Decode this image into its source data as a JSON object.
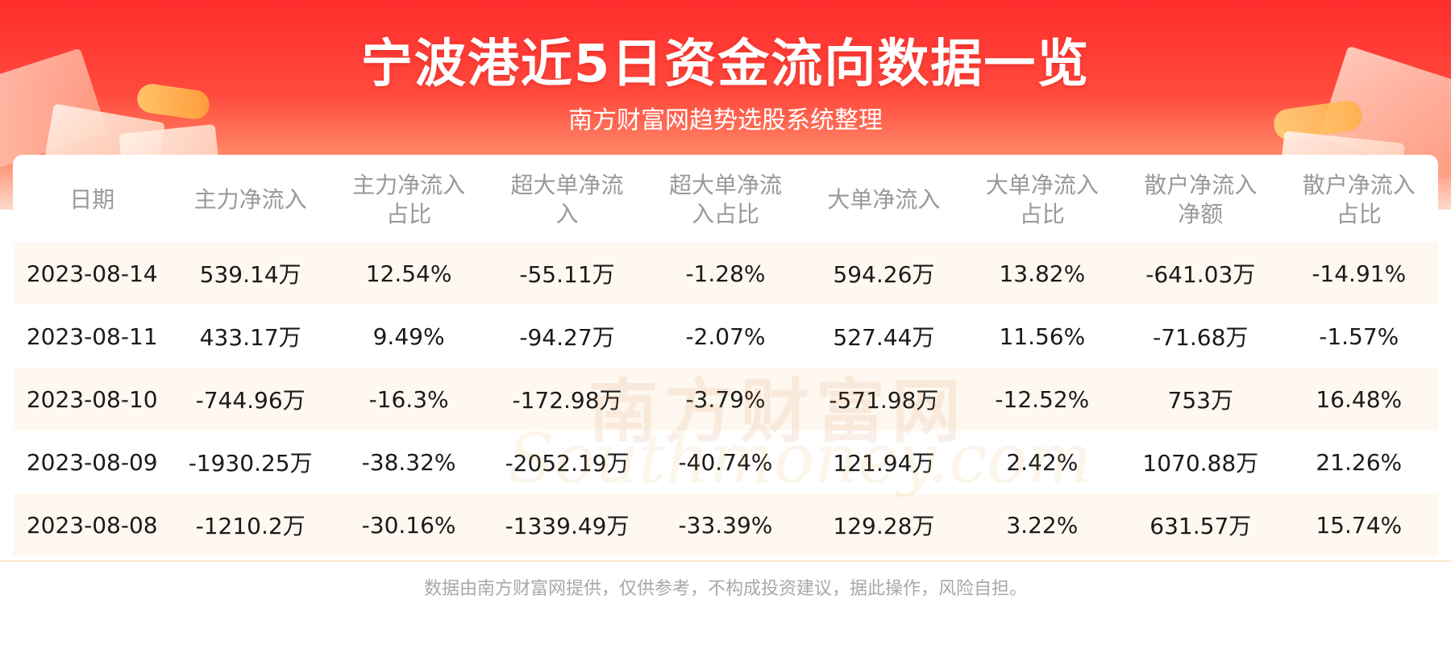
{
  "header": {
    "title": "宁波港近5日资金流向数据一览",
    "subtitle": "南方财富网趋势选股系统整理"
  },
  "watermark": {
    "cn": "南方财富网",
    "en": "Southmoney.com"
  },
  "footer": {
    "disclaimer": "数据由南方财富网提供，仅供参考，不构成投资建议，据此操作，风险自担。"
  },
  "colors": {
    "banner_red": "#ff2d2d",
    "row_stripe": "#fff8f0",
    "header_text": "#999999",
    "cell_text": "#1a1a1a"
  },
  "chart_data": {
    "type": "table",
    "columns": [
      "日期",
      "主力净流入",
      "主力净流入占比",
      "超大单净流入",
      "超大单净流入占比",
      "大单净流入",
      "大单净流入占比",
      "散户净流入净额",
      "散户净流入占比"
    ],
    "column_display": [
      [
        "日期"
      ],
      [
        "主力净流入"
      ],
      [
        "主力净流入",
        "占比"
      ],
      [
        "超大单净流",
        "入"
      ],
      [
        "超大单净流",
        "入占比"
      ],
      [
        "大单净流入"
      ],
      [
        "大单净流入",
        "占比"
      ],
      [
        "散户净流入",
        "净额"
      ],
      [
        "散户净流入",
        "占比"
      ]
    ],
    "rows": [
      [
        "2023-08-14",
        "539.14万",
        "12.54%",
        "-55.11万",
        "-1.28%",
        "594.26万",
        "13.82%",
        "-641.03万",
        "-14.91%"
      ],
      [
        "2023-08-11",
        "433.17万",
        "9.49%",
        "-94.27万",
        "-2.07%",
        "527.44万",
        "11.56%",
        "-71.68万",
        "-1.57%"
      ],
      [
        "2023-08-10",
        "-744.96万",
        "-16.3%",
        "-172.98万",
        "-3.79%",
        "-571.98万",
        "-12.52%",
        "753万",
        "16.48%"
      ],
      [
        "2023-08-09",
        "-1930.25万",
        "-38.32%",
        "-2052.19万",
        "-40.74%",
        "121.94万",
        "2.42%",
        "1070.88万",
        "21.26%"
      ],
      [
        "2023-08-08",
        "-1210.2万",
        "-30.16%",
        "-1339.49万",
        "-33.39%",
        "129.28万",
        "3.22%",
        "631.57万",
        "15.74%"
      ]
    ]
  }
}
